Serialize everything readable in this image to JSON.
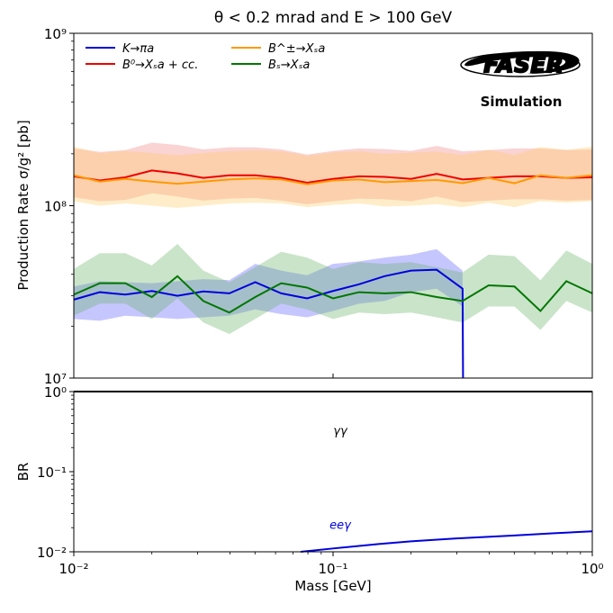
{
  "title": "θ < 0.2 mrad and E > 100 GeV",
  "logo": {
    "text": "FASER",
    "caption": "Simulation"
  },
  "chart_data": [
    {
      "type": "line",
      "xlabel": "",
      "ylabel": "Production Rate σ/g² [pb]",
      "xscale": "log",
      "yscale": "log",
      "xlim": [
        0.01,
        1
      ],
      "ylim": [
        10000000,
        1000000000
      ],
      "x_ticks": [
        {
          "value": 0.01,
          "label": ""
        },
        {
          "value": 0.1,
          "label": ""
        },
        {
          "value": 1,
          "label": ""
        }
      ],
      "y_ticks": [
        {
          "value": 10000000,
          "label": "10⁷"
        },
        {
          "value": 100000000,
          "label": "10⁸"
        },
        {
          "value": 1000000000,
          "label": "10⁹"
        }
      ],
      "legend_position": "top-left",
      "series": [
        {
          "name": "K→πa",
          "color": "#0000dd",
          "band_color": "#5b5bff",
          "x": [
            0.01,
            0.0126,
            0.0158,
            0.02,
            0.0251,
            0.0316,
            0.0398,
            0.0501,
            0.0631,
            0.0794,
            0.1,
            0.126,
            0.158,
            0.2,
            0.251,
            0.316
          ],
          "y": [
            28500000,
            31500000,
            30500000,
            32000000,
            30000000,
            31800000,
            31000000,
            36000000,
            31000000,
            29000000,
            32000000,
            35000000,
            39000000,
            42000000,
            42500000,
            33000000
          ],
          "y_low": [
            22000000,
            21500000,
            23000000,
            22500000,
            22000000,
            22500000,
            23000000,
            25000000,
            23500000,
            22500000,
            24500000,
            27000000,
            28000000,
            31500000,
            33000000,
            26000000
          ],
          "y_high": [
            34000000,
            36500000,
            36000000,
            35500000,
            36500000,
            37500000,
            37000000,
            46000000,
            42000000,
            39500000,
            46000000,
            47500000,
            50000000,
            52000000,
            56000000,
            42000000
          ]
        },
        {
          "name": "B⁰→Xₛa + cc.",
          "color": "#ee0000",
          "band_color": "#f08080",
          "x": [
            0.01,
            0.0126,
            0.0158,
            0.02,
            0.0251,
            0.0316,
            0.0398,
            0.0501,
            0.0631,
            0.0794,
            0.1,
            0.126,
            0.158,
            0.2,
            0.251,
            0.316,
            0.398,
            0.501,
            0.631,
            0.794,
            1
          ],
          "y": [
            148000000,
            140000000,
            146000000,
            160000000,
            154000000,
            145000000,
            150000000,
            150000000,
            145000000,
            136000000,
            143000000,
            148000000,
            147000000,
            143000000,
            153000000,
            142000000,
            145000000,
            148000000,
            148000000,
            145000000,
            146000000
          ],
          "y_low": [
            112000000,
            106000000,
            108000000,
            118000000,
            113000000,
            107000000,
            110000000,
            111000000,
            107000000,
            102000000,
            106000000,
            110000000,
            109000000,
            106000000,
            113000000,
            105000000,
            107000000,
            109000000,
            109000000,
            107000000,
            108000000
          ],
          "y_high": [
            215000000,
            205000000,
            210000000,
            232000000,
            225000000,
            212000000,
            218000000,
            218000000,
            212000000,
            198000000,
            208000000,
            215000000,
            213000000,
            208000000,
            222000000,
            207000000,
            210000000,
            215000000,
            215000000,
            210000000,
            212000000
          ]
        },
        {
          "name": "B^±→Xₛa",
          "color": "#ff9900",
          "band_color": "#ffcc66",
          "x": [
            0.01,
            0.0126,
            0.0158,
            0.02,
            0.0251,
            0.0316,
            0.0398,
            0.0501,
            0.0631,
            0.0794,
            0.1,
            0.126,
            0.158,
            0.2,
            0.251,
            0.316,
            0.398,
            0.501,
            0.631,
            0.794,
            1
          ],
          "y": [
            150000000,
            138000000,
            143000000,
            138000000,
            134000000,
            138000000,
            142000000,
            144000000,
            142000000,
            133000000,
            140000000,
            142000000,
            137000000,
            139000000,
            141000000,
            135000000,
            145000000,
            135000000,
            150000000,
            145000000,
            150000000
          ],
          "y_low": [
            106000000,
            100000000,
            103000000,
            100000000,
            97000000,
            100000000,
            103000000,
            104000000,
            103000000,
            98000000,
            101000000,
            103000000,
            99000000,
            100000000,
            102000000,
            98000000,
            104000000,
            98000000,
            106000000,
            104000000,
            106000000
          ],
          "y_high": [
            220000000,
            202000000,
            208000000,
            202000000,
            196000000,
            202000000,
            207000000,
            210000000,
            207000000,
            195000000,
            204000000,
            207000000,
            200000000,
            203000000,
            206000000,
            197000000,
            211000000,
            197000000,
            219000000,
            211000000,
            220000000
          ]
        },
        {
          "name": "Bₛ→Xₛa",
          "color": "#007700",
          "band_color": "#66b366",
          "x": [
            0.01,
            0.0126,
            0.0158,
            0.02,
            0.0251,
            0.0316,
            0.0398,
            0.0501,
            0.0631,
            0.0794,
            0.1,
            0.126,
            0.158,
            0.2,
            0.251,
            0.316,
            0.398,
            0.501,
            0.631,
            0.794,
            1
          ],
          "y": [
            30500000,
            35500000,
            35500000,
            29500000,
            39000000,
            28000000,
            24000000,
            29500000,
            35500000,
            33500000,
            29000000,
            31500000,
            31000000,
            31500000,
            29500000,
            28000000,
            34500000,
            34000000,
            24500000,
            36500000,
            31000000
          ],
          "y_low": [
            23000000,
            27000000,
            27000000,
            22000000,
            29000000,
            21000000,
            18000000,
            22000000,
            27000000,
            25000000,
            22000000,
            24000000,
            23500000,
            24000000,
            22500000,
            21000000,
            26000000,
            26000000,
            19000000,
            28000000,
            24000000
          ],
          "y_high": [
            43000000,
            53000000,
            53000000,
            45000000,
            60000000,
            42000000,
            36000000,
            44000000,
            54000000,
            50000000,
            43000000,
            47000000,
            46000000,
            47000000,
            44000000,
            41000000,
            52000000,
            51000000,
            37000000,
            55000000,
            46000000
          ]
        }
      ]
    },
    {
      "type": "line",
      "xlabel": "Mass [GeV]",
      "ylabel": "BR",
      "xscale": "log",
      "yscale": "log",
      "xlim": [
        0.01,
        1
      ],
      "ylim": [
        0.01,
        1
      ],
      "x_ticks": [
        {
          "value": 0.01,
          "label": "10⁻²"
        },
        {
          "value": 0.1,
          "label": "10⁻¹"
        },
        {
          "value": 1,
          "label": "10⁰"
        }
      ],
      "y_ticks": [
        {
          "value": 0.01,
          "label": "10⁻²"
        },
        {
          "value": 0.1,
          "label": "10⁻¹"
        },
        {
          "value": 1,
          "label": "10⁰"
        }
      ],
      "series": [
        {
          "name": "γγ",
          "color": "#000000",
          "x": [
            0.01,
            1
          ],
          "y": [
            1,
            1
          ],
          "label_position": {
            "x": 0.1,
            "y": 0.33
          }
        },
        {
          "name": "eeγ",
          "color": "#0000dd",
          "x": [
            0.075,
            0.1,
            0.15,
            0.2,
            0.3,
            0.5,
            0.7,
            1
          ],
          "y": [
            0.00975,
            0.011,
            0.0125,
            0.0135,
            0.0147,
            0.016,
            0.017,
            0.018
          ],
          "label_position": {
            "x": 0.1,
            "y": 0.022
          }
        }
      ]
    }
  ]
}
